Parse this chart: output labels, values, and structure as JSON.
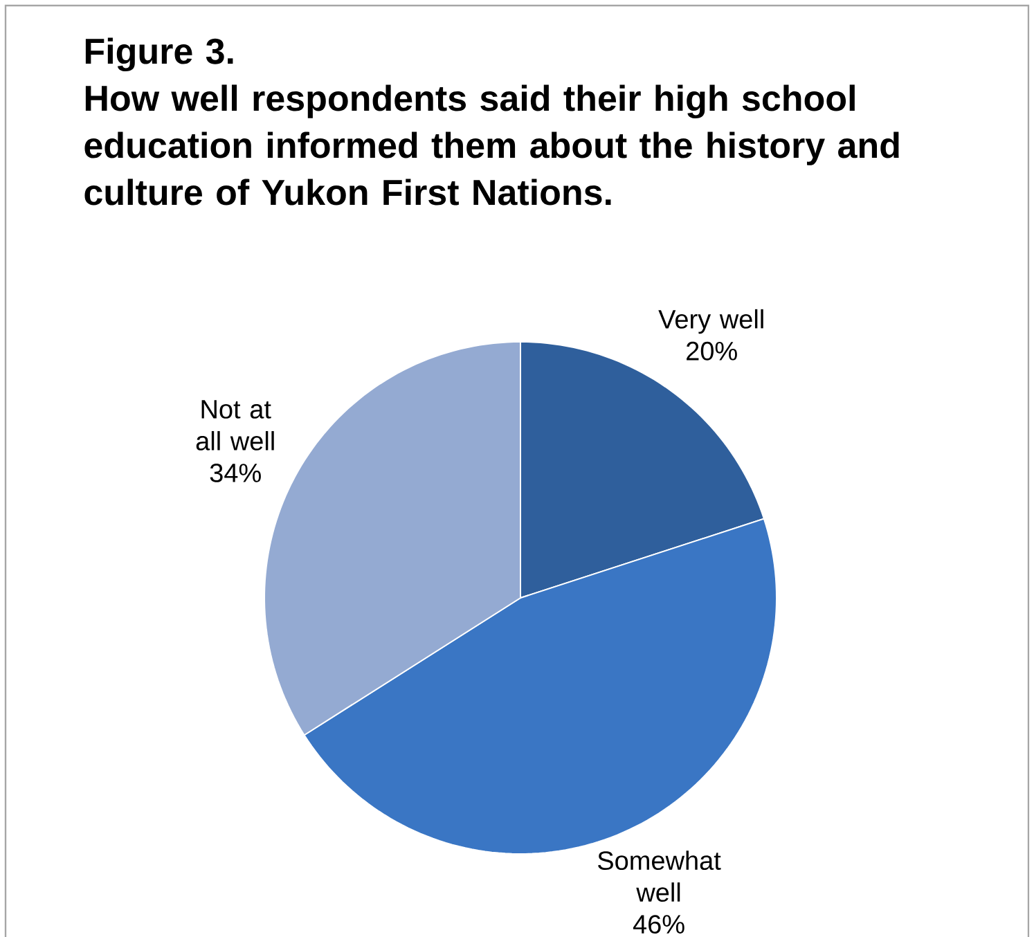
{
  "chart_data": {
    "type": "pie",
    "title": "Figure 3.",
    "subtitle": "How well respondents said their high school education informed them about the history and culture of Yukon First Nations.",
    "categories": [
      "Very well",
      "Somewhat well",
      "Not at all well"
    ],
    "values": [
      20,
      46,
      34
    ],
    "value_labels": [
      "20%",
      "46%",
      "34%"
    ],
    "colors": [
      "#2f5f9c",
      "#3a76c4",
      "#94aad2"
    ]
  }
}
